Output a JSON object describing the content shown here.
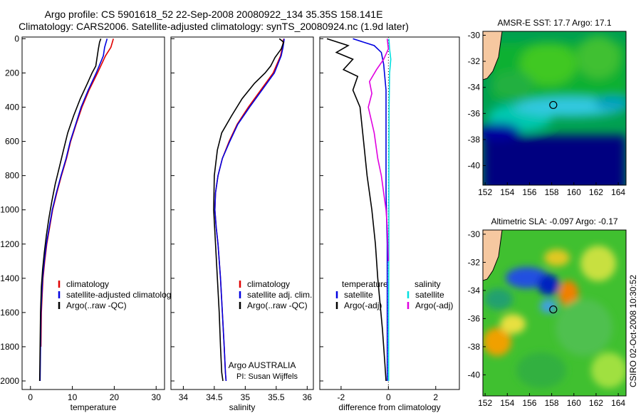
{
  "title": {
    "line1": "Argo profile: CS 5901618_52 22-Sep-2008 20080922_134 35.35S 158.141E",
    "line2": "Climatology: CARS2006. Satellite-adjusted climatology: synTS_20080924.nc (1.9d later)"
  },
  "footer": {
    "credit_line1": "Argo AUSTRALIA",
    "credit_line2": "PI: Susan Wijffels",
    "timestamp": "CSIRO 02-Oct-2008 10:30:52"
  },
  "colors": {
    "climatology": "#e00000",
    "satellite": "#0000e0",
    "argo": "#000000",
    "salinity_satellite": "#00e0e0",
    "salinity_argo": "#e000e0",
    "land": "#f6c8a0"
  },
  "chart_data": [
    {
      "type": "line",
      "id": "temperature",
      "xlabel": "temperature",
      "ylabel": "",
      "xlim": [
        -2,
        32
      ],
      "ylim": [
        2050,
        -10
      ],
      "xticks": [
        "0",
        "10",
        "20",
        "30"
      ],
      "yticks": [
        "0",
        "200",
        "400",
        "600",
        "800",
        "1000",
        "1200",
        "1400",
        "1600",
        "1800",
        "2000"
      ],
      "legend": [
        "climatology",
        "satellite-adjusted climatolog",
        "Argo(..raw -QC)"
      ],
      "series": [
        {
          "name": "climatology",
          "x": [
            19.8,
            19.2,
            17.9,
            16.0,
            14.0,
            12.3,
            10.9,
            9.6,
            8.6,
            7.4,
            6.3,
            5.3,
            4.6,
            3.9,
            3.4,
            3.0,
            2.8,
            2.6,
            2.5
          ],
          "y": [
            0,
            50,
            100,
            200,
            300,
            400,
            500,
            600,
            700,
            800,
            900,
            1000,
            1100,
            1200,
            1300,
            1400,
            1500,
            1600,
            1800
          ]
        },
        {
          "name": "satellite-adjusted climatolog",
          "x": [
            18.3,
            17.7,
            17.4,
            15.7,
            13.8,
            12.1,
            10.8,
            9.5,
            8.5,
            7.3,
            6.2,
            5.2,
            4.5,
            3.8,
            3.3,
            2.9,
            2.7,
            2.5,
            2.4,
            2.3
          ],
          "y": [
            0,
            50,
            100,
            200,
            300,
            400,
            500,
            600,
            700,
            800,
            900,
            1000,
            1100,
            1200,
            1300,
            1400,
            1500,
            1600,
            1800,
            2000
          ]
        },
        {
          "name": "Argo(..raw -QC)",
          "x": [
            16.8,
            16.5,
            16.2,
            15.9,
            15.6,
            14.7,
            13.6,
            11.9,
            10.3,
            8.9,
            7.9,
            6.9,
            5.9,
            5.1,
            4.4,
            3.8,
            3.3,
            2.9,
            2.6,
            2.4,
            2.3,
            2.2
          ],
          "y": [
            0,
            20,
            60,
            110,
            160,
            200,
            260,
            350,
            450,
            550,
            650,
            750,
            850,
            950,
            1050,
            1150,
            1250,
            1350,
            1450,
            1600,
            1800,
            2000
          ]
        }
      ]
    },
    {
      "type": "line",
      "id": "salinity",
      "xlabel": "salinity",
      "ylabel": "",
      "xlim": [
        33.8,
        36.1
      ],
      "ylim": [
        2050,
        -10
      ],
      "xticks": [
        "34",
        "34.5",
        "35",
        "35.5",
        "36"
      ],
      "legend": [
        "climatology",
        "satellite adj. clim.",
        "Argo(..raw -QC)"
      ],
      "series": [
        {
          "name": "climatology",
          "x": [
            35.62,
            35.6,
            35.57,
            35.45,
            35.25,
            35.05,
            34.87,
            34.74,
            34.63,
            34.56,
            34.52,
            34.51,
            34.53,
            34.56,
            34.6,
            34.63,
            34.66,
            34.68,
            34.69
          ],
          "y": [
            0,
            50,
            100,
            200,
            300,
            400,
            500,
            600,
            700,
            800,
            900,
            1000,
            1100,
            1200,
            1400,
            1600,
            1800,
            1950,
            2000
          ]
        },
        {
          "name": "satellite adj. clim.",
          "x": [
            35.63,
            35.61,
            35.58,
            35.47,
            35.27,
            35.07,
            34.88,
            34.75,
            34.63,
            34.56,
            34.52,
            34.51,
            34.53,
            34.56,
            34.6,
            34.63,
            34.66,
            34.68,
            34.69
          ],
          "y": [
            0,
            50,
            100,
            200,
            300,
            400,
            500,
            600,
            700,
            800,
            900,
            1000,
            1100,
            1200,
            1400,
            1600,
            1800,
            1950,
            2000
          ]
        },
        {
          "name": "Argo(..raw -QC)",
          "x": [
            35.55,
            35.62,
            35.58,
            35.48,
            35.41,
            35.32,
            35.15,
            34.95,
            34.78,
            34.62,
            34.55,
            34.5,
            34.49,
            34.52,
            34.55,
            34.58,
            34.6,
            34.62,
            34.64
          ],
          "y": [
            0,
            20,
            60,
            110,
            160,
            200,
            260,
            350,
            450,
            550,
            650,
            800,
            1000,
            1200,
            1400,
            1600,
            1800,
            1950,
            2000
          ]
        }
      ]
    },
    {
      "type": "line",
      "id": "difference",
      "xlabel": "difference from climatology",
      "ylabel": "",
      "xlim": [
        -2.9,
        3.0
      ],
      "ylim": [
        2050,
        -10
      ],
      "xticks": [
        "-2",
        "0",
        "2"
      ],
      "legend_left_title": "temperature",
      "legend_right_title": "salinity",
      "legend": [
        "satellite",
        "Argo(-adj)",
        "satellite",
        "Argo(-adj)"
      ],
      "series": [
        {
          "name": "satellite",
          "group": "temperature",
          "x": [
            -1.5,
            -0.6,
            -0.3,
            -0.2,
            -0.1,
            -0.1,
            -0.1,
            -0.05,
            -0.05,
            -0.05
          ],
          "y": [
            0,
            40,
            80,
            150,
            300,
            600,
            900,
            1200,
            1600,
            2000
          ]
        },
        {
          "name": "Argo(-adj)",
          "group": "temperature",
          "x": [
            -2.6,
            -1.7,
            -2.2,
            -1.5,
            -1.9,
            -1.3,
            -1.5,
            -1.2,
            -1.05,
            -0.9,
            -0.7,
            -0.55,
            -0.45,
            -0.35,
            -0.25,
            -0.2,
            -0.15,
            -0.1
          ],
          "y": [
            0,
            40,
            80,
            120,
            180,
            220,
            300,
            400,
            600,
            800,
            1000,
            1200,
            1400,
            1550,
            1700,
            1800,
            1900,
            2000
          ]
        },
        {
          "name": "satellite",
          "group": "salinity",
          "x": [
            0.02,
            0.05,
            0.1,
            0.05,
            0.03,
            0.02,
            0.02,
            0.01,
            0.01
          ],
          "y": [
            0,
            60,
            120,
            200,
            400,
            800,
            1200,
            1600,
            2000
          ]
        },
        {
          "name": "Argo(-adj)",
          "group": "salinity",
          "x": [
            -0.05,
            0.0,
            -0.2,
            -0.5,
            -0.8,
            -0.7,
            -0.85,
            -0.6,
            -0.45,
            -0.3,
            -0.2,
            -0.1,
            -0.05,
            0.0
          ],
          "y": [
            0,
            60,
            120,
            180,
            250,
            320,
            400,
            550,
            700,
            800,
            900,
            1000,
            1100,
            1300
          ]
        }
      ]
    },
    {
      "type": "heatmap",
      "id": "sst_map",
      "title": "AMSR-E SST: 17.7 Argo: 17.1",
      "xlim": [
        151.8,
        164.7
      ],
      "ylim": [
        -41.5,
        -29.7
      ],
      "xticks": [
        "152",
        "154",
        "156",
        "158",
        "160",
        "162",
        "164"
      ],
      "yticks": [
        "-30",
        "-32",
        "-34",
        "-36",
        "-38",
        "-40"
      ],
      "marker": {
        "lon": 158.141,
        "lat": -35.35
      }
    },
    {
      "type": "heatmap",
      "id": "sla_map",
      "title": "Altimetric SLA: -0.097 Argo: -0.17",
      "xlim": [
        151.8,
        164.7
      ],
      "ylim": [
        -41.5,
        -29.7
      ],
      "xticks": [
        "152",
        "154",
        "156",
        "158",
        "160",
        "162",
        "164"
      ],
      "yticks": [
        "-30",
        "-32",
        "-34",
        "-36",
        "-38",
        "-40"
      ],
      "marker": {
        "lon": 158.141,
        "lat": -35.35
      }
    }
  ]
}
